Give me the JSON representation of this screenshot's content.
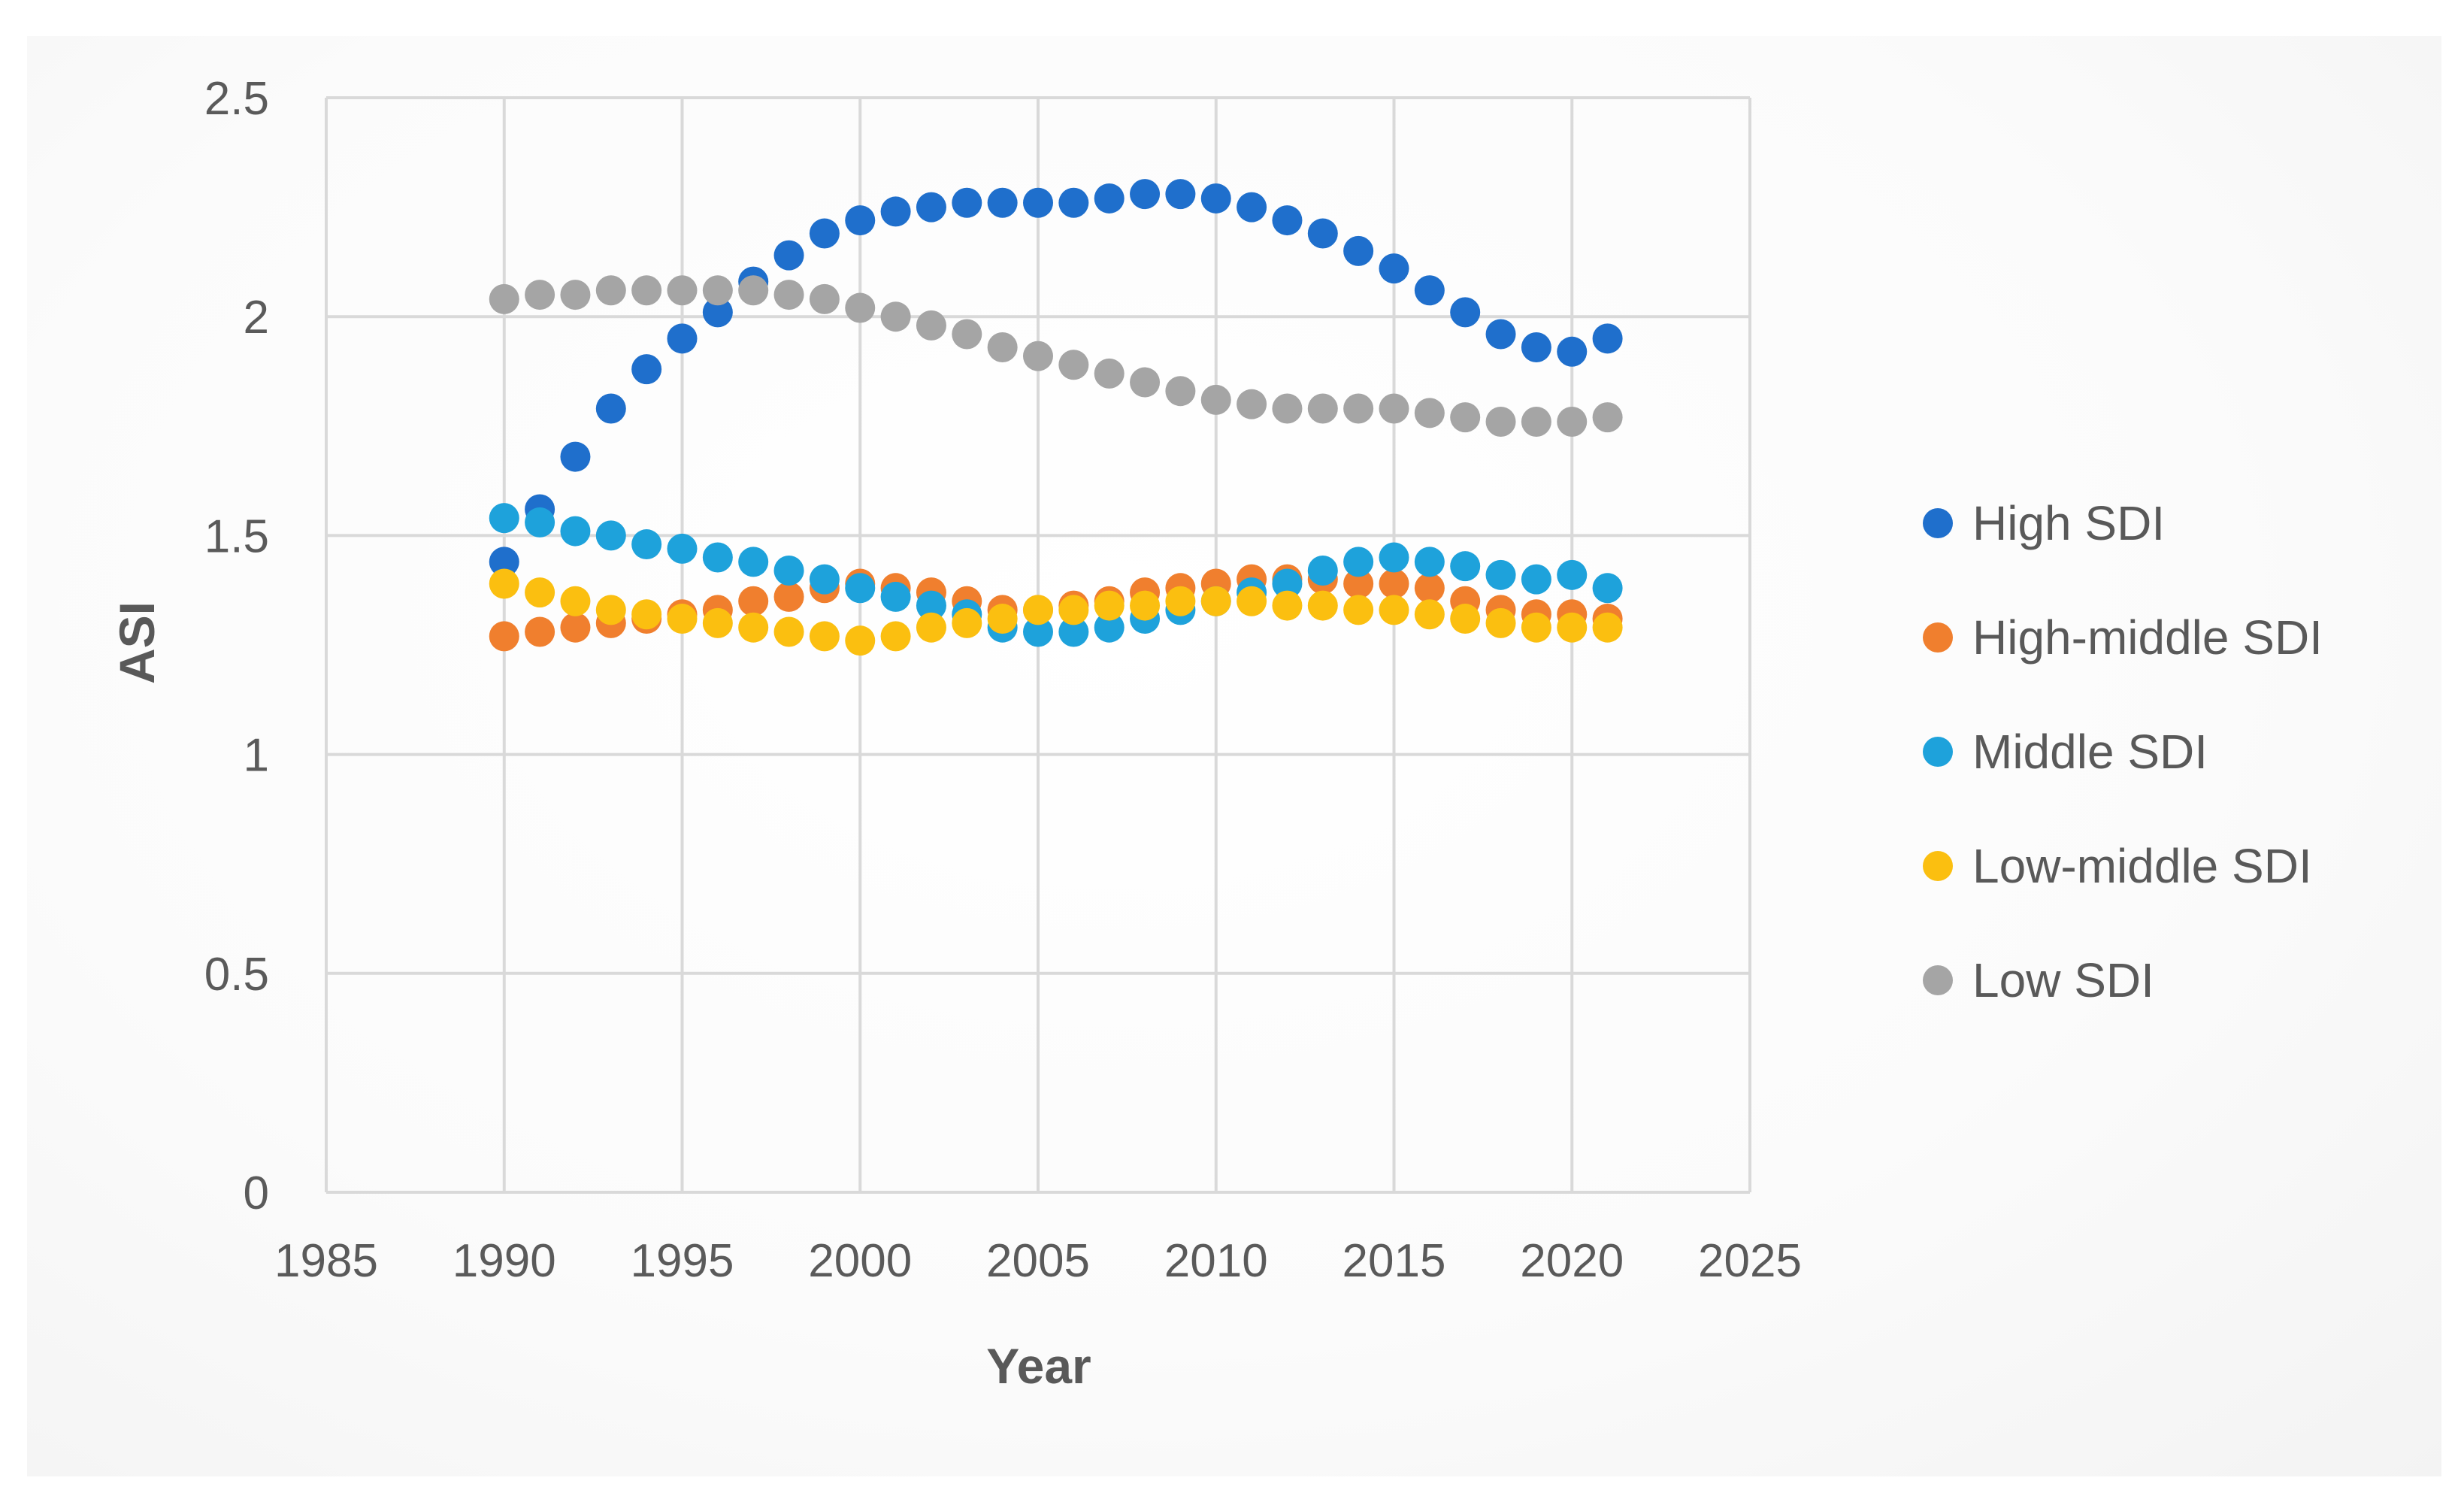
{
  "chart_data": {
    "type": "scatter",
    "title": "",
    "xlabel": "Year",
    "ylabel": "ASI",
    "xlim": [
      1985,
      2025
    ],
    "ylim": [
      0,
      2.5
    ],
    "xticks": [
      1985,
      1990,
      1995,
      2000,
      2005,
      2010,
      2015,
      2020,
      2025
    ],
    "yticks": [
      0,
      0.5,
      1,
      1.5,
      2,
      2.5
    ],
    "xtick_labels": [
      "1985",
      "1990",
      "1995",
      "2000",
      "2005",
      "2010",
      "2015",
      "2020",
      "2025"
    ],
    "ytick_labels": [
      "0",
      "0.5",
      "1",
      "1.5",
      "2",
      "2.5"
    ],
    "grid": true,
    "legend_position": "right",
    "x": [
      1990,
      1991,
      1992,
      1993,
      1994,
      1995,
      1996,
      1997,
      1998,
      1999,
      2000,
      2001,
      2002,
      2003,
      2004,
      2005,
      2006,
      2007,
      2008,
      2009,
      2010,
      2011,
      2012,
      2013,
      2014,
      2015,
      2016,
      2017,
      2018,
      2019,
      2020,
      2021
    ],
    "series": [
      {
        "name": "High SDI",
        "color": "#1f6fcc",
        "values": [
          1.44,
          1.56,
          1.68,
          1.79,
          1.88,
          1.95,
          2.01,
          2.08,
          2.14,
          2.19,
          2.22,
          2.24,
          2.25,
          2.26,
          2.26,
          2.26,
          2.26,
          2.27,
          2.28,
          2.28,
          2.27,
          2.25,
          2.22,
          2.19,
          2.15,
          2.11,
          2.06,
          2.01,
          1.96,
          1.93,
          1.92,
          1.95
        ]
      },
      {
        "name": "High-middle SDI",
        "color": "#f07f2e",
        "values": [
          1.27,
          1.28,
          1.29,
          1.3,
          1.31,
          1.32,
          1.33,
          1.35,
          1.36,
          1.38,
          1.39,
          1.38,
          1.37,
          1.35,
          1.33,
          1.33,
          1.34,
          1.35,
          1.37,
          1.38,
          1.39,
          1.4,
          1.4,
          1.4,
          1.39,
          1.39,
          1.38,
          1.35,
          1.33,
          1.32,
          1.32,
          1.31
        ]
      },
      {
        "name": "Middle SDI",
        "color": "#1ea2db",
        "values": [
          1.54,
          1.53,
          1.51,
          1.5,
          1.48,
          1.47,
          1.45,
          1.44,
          1.42,
          1.4,
          1.38,
          1.36,
          1.34,
          1.32,
          1.29,
          1.28,
          1.28,
          1.29,
          1.31,
          1.33,
          1.35,
          1.37,
          1.39,
          1.42,
          1.44,
          1.45,
          1.44,
          1.43,
          1.41,
          1.4,
          1.41,
          1.38
        ]
      },
      {
        "name": "Low-middle SDI",
        "color": "#fbbf10",
        "values": [
          1.39,
          1.37,
          1.35,
          1.33,
          1.32,
          1.31,
          1.3,
          1.29,
          1.28,
          1.27,
          1.26,
          1.27,
          1.29,
          1.3,
          1.31,
          1.33,
          1.33,
          1.34,
          1.34,
          1.35,
          1.35,
          1.35,
          1.34,
          1.34,
          1.33,
          1.33,
          1.32,
          1.31,
          1.3,
          1.29,
          1.29,
          1.29
        ]
      },
      {
        "name": "Low SDI",
        "color": "#a5a5a5",
        "values": [
          2.04,
          2.05,
          2.05,
          2.06,
          2.06,
          2.06,
          2.06,
          2.06,
          2.05,
          2.04,
          2.02,
          2.0,
          1.98,
          1.96,
          1.93,
          1.91,
          1.89,
          1.87,
          1.85,
          1.83,
          1.81,
          1.8,
          1.79,
          1.79,
          1.79,
          1.79,
          1.78,
          1.77,
          1.76,
          1.76,
          1.76,
          1.77
        ]
      }
    ]
  }
}
